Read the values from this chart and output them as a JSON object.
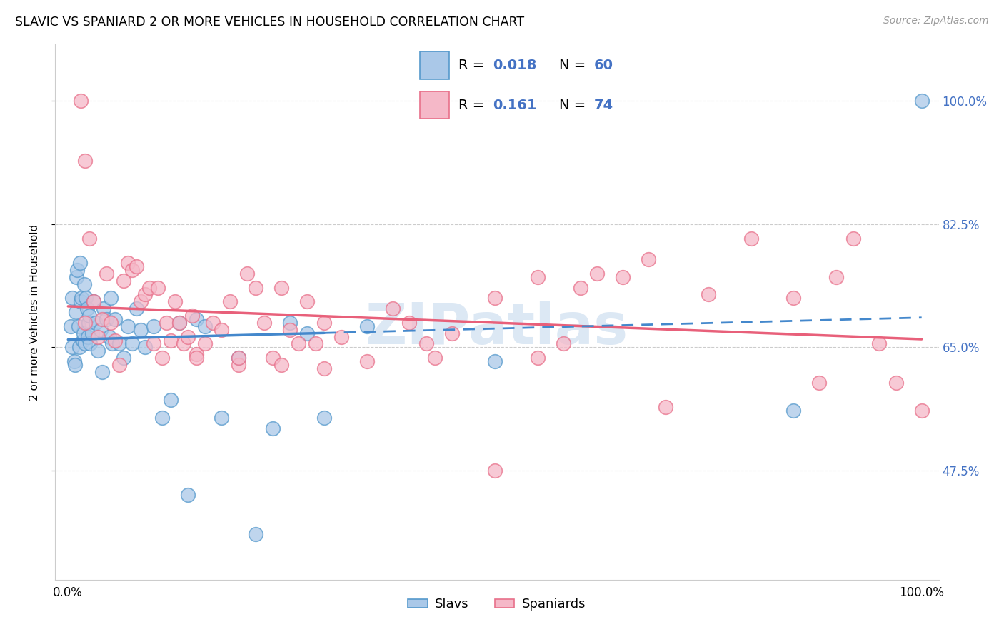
{
  "title": "SLAVIC VS SPANIARD 2 OR MORE VEHICLES IN HOUSEHOLD CORRELATION CHART",
  "source": "Source: ZipAtlas.com",
  "ylabel": "2 or more Vehicles in Household",
  "y_ticks": [
    47.5,
    65.0,
    82.5,
    100.0
  ],
  "y_tick_labels": [
    "47.5%",
    "65.0%",
    "82.5%",
    "100.0%"
  ],
  "slavs_R": 0.018,
  "slavs_N": 60,
  "spaniards_R": 0.161,
  "spaniards_N": 74,
  "slavs_color": "#aac8e8",
  "spaniards_color": "#f5b8c8",
  "slavs_edge_color": "#5599cc",
  "spaniards_edge_color": "#e8708a",
  "slavs_line_color": "#4488cc",
  "spaniards_line_color": "#e8607a",
  "background_color": "#ffffff",
  "watermark": "ZIPatlas",
  "legend_text_color": "#4472c4",
  "right_tick_color": "#4472c4",
  "slavs_x": [
    0.3,
    0.5,
    0.5,
    0.7,
    0.8,
    0.9,
    1.0,
    1.1,
    1.2,
    1.3,
    1.4,
    1.5,
    1.6,
    1.7,
    1.8,
    1.9,
    2.0,
    2.1,
    2.2,
    2.3,
    2.4,
    2.5,
    2.6,
    2.8,
    3.0,
    3.2,
    3.5,
    3.8,
    4.0,
    4.2,
    4.5,
    4.8,
    5.0,
    5.2,
    5.5,
    6.0,
    6.5,
    7.0,
    7.5,
    8.0,
    8.5,
    9.0,
    10.0,
    11.0,
    12.0,
    13.0,
    14.0,
    15.0,
    16.0,
    18.0,
    20.0,
    22.0,
    24.0,
    26.0,
    28.0,
    30.0,
    35.0,
    50.0,
    85.0,
    100.0
  ],
  "slavs_y": [
    68.0,
    65.0,
    72.0,
    63.0,
    62.5,
    70.0,
    75.0,
    76.0,
    68.0,
    65.0,
    77.0,
    71.5,
    72.0,
    66.0,
    67.0,
    74.0,
    65.5,
    72.0,
    70.5,
    66.5,
    68.5,
    69.5,
    65.5,
    67.0,
    71.5,
    68.5,
    64.5,
    67.5,
    61.5,
    70.5,
    69.0,
    66.5,
    72.0,
    65.5,
    69.0,
    65.5,
    63.5,
    68.0,
    65.5,
    70.5,
    67.5,
    65.0,
    68.0,
    55.0,
    57.5,
    68.5,
    44.0,
    69.0,
    68.0,
    55.0,
    63.5,
    38.5,
    53.5,
    68.5,
    67.0,
    55.0,
    68.0,
    63.0,
    56.0,
    100.0
  ],
  "spaniards_x": [
    1.5,
    2.0,
    2.5,
    3.0,
    3.5,
    4.0,
    4.5,
    5.0,
    5.5,
    6.0,
    6.5,
    7.0,
    7.5,
    8.0,
    8.5,
    9.0,
    9.5,
    10.0,
    10.5,
    11.0,
    11.5,
    12.0,
    12.5,
    13.0,
    13.5,
    14.0,
    14.5,
    15.0,
    16.0,
    17.0,
    18.0,
    19.0,
    20.0,
    21.0,
    22.0,
    23.0,
    24.0,
    25.0,
    26.0,
    27.0,
    28.0,
    29.0,
    30.0,
    32.0,
    35.0,
    38.0,
    40.0,
    42.0,
    45.0,
    50.0,
    55.0,
    58.0,
    60.0,
    62.0,
    65.0,
    68.0,
    70.0,
    75.0,
    80.0,
    85.0,
    88.0,
    90.0,
    92.0,
    95.0,
    97.0,
    100.0,
    15.0,
    20.0,
    25.0,
    30.0,
    50.0,
    2.0,
    55.0,
    43.0
  ],
  "spaniards_y": [
    100.0,
    91.5,
    80.5,
    71.5,
    66.5,
    69.0,
    75.5,
    68.5,
    66.0,
    62.5,
    74.5,
    77.0,
    76.0,
    76.5,
    71.5,
    72.5,
    73.5,
    65.5,
    73.5,
    63.5,
    68.5,
    66.0,
    71.5,
    68.5,
    65.5,
    66.5,
    69.5,
    64.0,
    65.5,
    68.5,
    67.5,
    71.5,
    62.5,
    75.5,
    73.5,
    68.5,
    63.5,
    73.5,
    67.5,
    65.5,
    71.5,
    65.5,
    68.5,
    66.5,
    63.0,
    70.5,
    68.5,
    65.5,
    67.0,
    72.0,
    75.0,
    65.5,
    73.5,
    75.5,
    75.0,
    77.5,
    56.5,
    72.5,
    80.5,
    72.0,
    60.0,
    75.0,
    80.5,
    65.5,
    60.0,
    56.0,
    63.5,
    63.5,
    62.5,
    62.0,
    47.5,
    68.5,
    63.5,
    63.5
  ]
}
